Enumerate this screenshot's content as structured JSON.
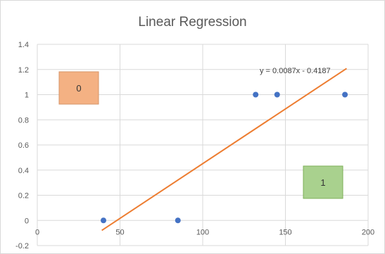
{
  "chart_data": {
    "type": "scatter",
    "title": "Linear Regression",
    "xlim": [
      0,
      200
    ],
    "ylim": [
      -0.2,
      1.4
    ],
    "x_ticks": [
      0,
      50,
      100,
      150,
      200
    ],
    "y_ticks": [
      -0.2,
      0,
      0.2,
      0.4,
      0.6,
      0.8,
      1,
      1.2,
      1.4
    ],
    "x_tick_labels": [
      "0",
      "50",
      "100",
      "150",
      "200"
    ],
    "y_tick_labels": [
      "-0.2",
      "0",
      "0.2",
      "0.4",
      "0.6",
      "0.8",
      "1",
      "1.2",
      "1.4"
    ],
    "grid": true,
    "points": [
      {
        "x": 40,
        "y": 0
      },
      {
        "x": 85,
        "y": 0
      },
      {
        "x": 132,
        "y": 1
      },
      {
        "x": 145,
        "y": 1
      },
      {
        "x": 186,
        "y": 1
      }
    ],
    "point_color": "#4472c4",
    "trendline": {
      "slope": 0.0087,
      "intercept": -0.4187,
      "x_range": [
        39,
        187
      ],
      "color": "#ed7d31",
      "label": "y = 0.0087x - 0.4187"
    },
    "annotations": [
      {
        "text": "0",
        "color": "#f4b183",
        "border": "#d6956a"
      },
      {
        "text": "1",
        "color": "#a9d18e",
        "border": "#7fb05a"
      }
    ]
  }
}
